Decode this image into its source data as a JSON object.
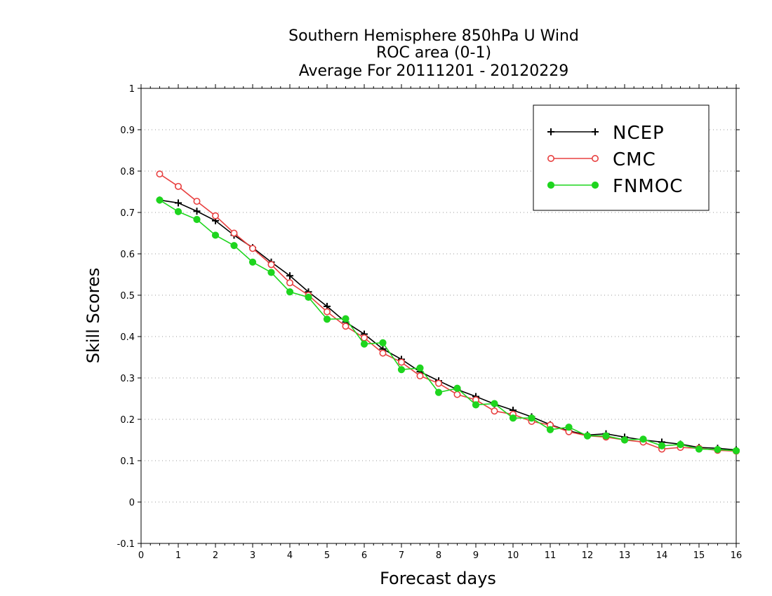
{
  "chart_data": {
    "type": "line",
    "title_lines": [
      "Southern Hemisphere 850hPa U Wind",
      "ROC area (0-1)",
      "Average For 20111201 - 20120229"
    ],
    "xlabel": "Forecast days",
    "ylabel": "Skill Scores",
    "xlim": [
      0,
      16
    ],
    "ylim": [
      -0.1,
      1
    ],
    "x_ticks": [
      0,
      1,
      2,
      3,
      4,
      5,
      6,
      7,
      8,
      9,
      10,
      11,
      12,
      13,
      14,
      15,
      16
    ],
    "x_tick_labels": [
      "0",
      "1",
      "2",
      "3",
      "4",
      "5",
      "6",
      "7",
      "8",
      "9",
      "10",
      "11",
      "12",
      "13",
      "14",
      "15",
      "16"
    ],
    "y_ticks": [
      -0.1,
      0,
      0.1,
      0.2,
      0.3,
      0.4,
      0.5,
      0.6,
      0.7,
      0.8,
      0.9,
      1
    ],
    "y_tick_labels": [
      "-0.1",
      "0",
      "0.1",
      "0.2",
      "0.3",
      "0.4",
      "0.5",
      "0.6",
      "0.7",
      "0.8",
      "0.9",
      "1"
    ],
    "grid": "horizontal dotted",
    "legend_position": "top-right",
    "x": [
      0.5,
      1,
      1.5,
      2,
      2.5,
      3,
      3.5,
      4,
      4.5,
      5,
      5.5,
      6,
      6.5,
      7,
      7.5,
      8,
      8.5,
      9,
      9.5,
      10,
      10.5,
      11,
      11.5,
      12,
      12.5,
      13,
      13.5,
      14,
      14.5,
      15,
      15.5,
      16
    ],
    "series": [
      {
        "name": "NCEP",
        "color": "#000000",
        "marker": "plus",
        "values": [
          0.73,
          0.723,
          0.703,
          0.68,
          0.645,
          0.615,
          0.58,
          0.547,
          0.508,
          0.473,
          0.435,
          0.406,
          0.37,
          0.345,
          0.315,
          0.293,
          0.272,
          0.255,
          0.237,
          0.222,
          0.206,
          0.187,
          0.172,
          0.162,
          0.165,
          0.157,
          0.15,
          0.145,
          0.14,
          0.132,
          0.13,
          0.126
        ]
      },
      {
        "name": "CMC",
        "color": "#e84040",
        "marker": "open-circle",
        "values": [
          0.793,
          0.763,
          0.727,
          0.692,
          0.65,
          0.613,
          0.574,
          0.53,
          0.5,
          0.46,
          0.425,
          0.397,
          0.36,
          0.338,
          0.305,
          0.287,
          0.26,
          0.247,
          0.22,
          0.212,
          0.195,
          0.186,
          0.17,
          0.16,
          0.157,
          0.15,
          0.145,
          0.128,
          0.132,
          0.13,
          0.125,
          0.123
        ]
      },
      {
        "name": "FNMOC",
        "color": "#1ed51e",
        "marker": "filled-circle",
        "values": [
          0.73,
          0.702,
          0.683,
          0.645,
          0.62,
          0.58,
          0.555,
          0.508,
          0.495,
          0.442,
          0.443,
          0.382,
          0.385,
          0.32,
          0.324,
          0.265,
          0.275,
          0.235,
          0.238,
          0.203,
          0.203,
          0.175,
          0.181,
          0.16,
          0.16,
          0.15,
          0.152,
          0.136,
          0.139,
          0.128,
          0.127,
          0.124
        ]
      }
    ]
  }
}
